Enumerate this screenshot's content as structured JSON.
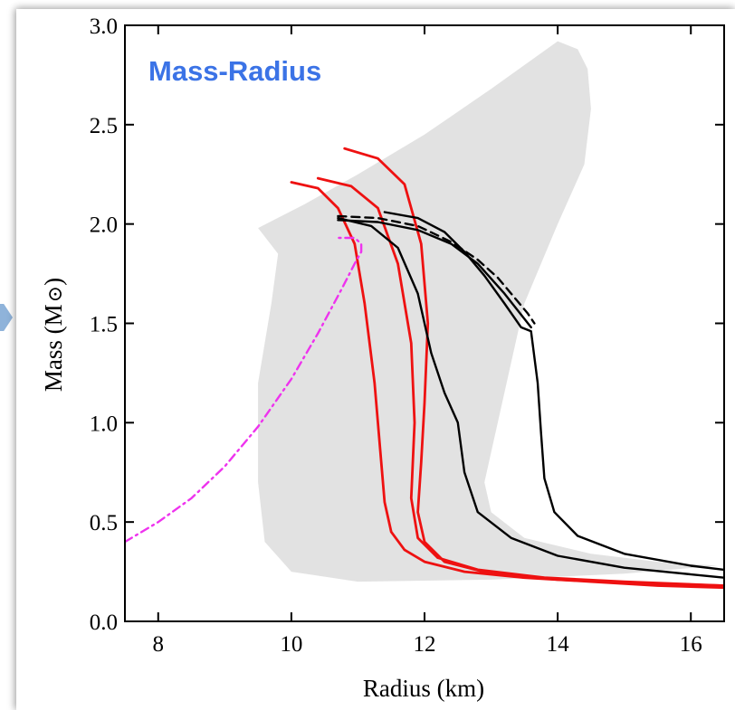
{
  "chart_data": {
    "type": "line",
    "title": "",
    "annotation": "Mass-Radius",
    "xlabel": "Radius (km)",
    "ylabel_main": "Mass (M",
    "ylabel_end": ")",
    "xlim": [
      7.5,
      16.5
    ],
    "ylim": [
      0.0,
      3.0
    ],
    "xticks": [
      8,
      10,
      12,
      14,
      16
    ],
    "yticks": [
      0.0,
      0.5,
      1.0,
      1.5,
      2.0,
      2.5,
      3.0
    ],
    "ytick_labels": [
      "0.0",
      "0.5",
      "1.0",
      "1.5",
      "2.0",
      "2.5",
      "3.0"
    ],
    "xtick_labels": [
      "8",
      "10",
      "12",
      "14",
      "16"
    ],
    "grid": false,
    "colors": {
      "red": "#ee1111",
      "black": "#000000",
      "magenta": "#ee33ee",
      "band": "#e2e2e2",
      "annotation": "#3b73e6"
    },
    "band": {
      "x": [
        9.5,
        10.2,
        11.0,
        12.0,
        13.0,
        14.0,
        14.3,
        14.45,
        14.5,
        14.4,
        14.0,
        13.5,
        13.1,
        12.9,
        13.0,
        13.5,
        14.5,
        15.5,
        16.4,
        15.0,
        13.0,
        11.0,
        10.0,
        9.6,
        9.5,
        9.5,
        9.7,
        9.8,
        9.5
      ],
      "y": [
        1.98,
        2.1,
        2.25,
        2.45,
        2.68,
        2.92,
        2.88,
        2.78,
        2.58,
        2.3,
        2.0,
        1.6,
        1.0,
        0.7,
        0.55,
        0.42,
        0.34,
        0.3,
        0.28,
        0.24,
        0.21,
        0.2,
        0.25,
        0.4,
        0.7,
        1.2,
        1.6,
        1.85,
        1.98
      ]
    },
    "series": [
      {
        "color": "red",
        "style": "solid",
        "x": [
          10.0,
          10.4,
          10.7,
          10.95,
          11.1,
          11.25,
          11.35,
          11.4,
          11.5,
          11.7,
          12.0,
          12.6,
          13.5,
          14.5,
          15.5,
          16.5
        ],
        "y": [
          2.21,
          2.18,
          2.08,
          1.9,
          1.6,
          1.2,
          0.8,
          0.6,
          0.45,
          0.36,
          0.3,
          0.25,
          0.22,
          0.2,
          0.18,
          0.17
        ]
      },
      {
        "color": "red",
        "style": "solid",
        "x": [
          10.4,
          10.9,
          11.3,
          11.6,
          11.8,
          11.85,
          11.8,
          11.9,
          12.2,
          12.8,
          13.8,
          15.0,
          16.5
        ],
        "y": [
          2.23,
          2.19,
          2.08,
          1.8,
          1.4,
          1.0,
          0.62,
          0.42,
          0.32,
          0.26,
          0.22,
          0.2,
          0.18
        ]
      },
      {
        "color": "red",
        "style": "solid",
        "x": [
          10.8,
          11.3,
          11.7,
          11.95,
          12.05,
          12.0,
          11.95,
          11.9,
          12.0,
          12.3,
          13.0,
          14.0,
          15.5,
          16.5
        ],
        "y": [
          2.38,
          2.33,
          2.2,
          1.9,
          1.5,
          1.1,
          0.8,
          0.55,
          0.4,
          0.3,
          0.24,
          0.21,
          0.19,
          0.18
        ]
      },
      {
        "color": "black",
        "style": "solid",
        "x": [
          10.7,
          11.2,
          11.6,
          11.9,
          12.1,
          12.3,
          12.5,
          12.6,
          12.8,
          13.3,
          14.0,
          15.0,
          16.5
        ],
        "y": [
          2.03,
          1.99,
          1.88,
          1.65,
          1.35,
          1.15,
          1.0,
          0.75,
          0.55,
          0.42,
          0.33,
          0.27,
          0.22
        ]
      },
      {
        "color": "black",
        "style": "solid",
        "x": [
          11.4,
          11.9,
          12.3,
          12.6,
          12.9,
          13.2,
          13.45,
          13.6,
          13.7,
          13.75,
          13.8,
          13.95,
          14.3,
          15.0,
          16.0,
          16.5
        ],
        "y": [
          2.06,
          2.03,
          1.96,
          1.86,
          1.74,
          1.6,
          1.48,
          1.46,
          1.2,
          0.95,
          0.72,
          0.55,
          0.43,
          0.34,
          0.28,
          0.26
        ]
      },
      {
        "color": "black",
        "style": "solid",
        "x": [
          10.7,
          11.3,
          11.9,
          12.4,
          12.8,
          13.2,
          13.6
        ],
        "y": [
          2.02,
          2.01,
          1.97,
          1.9,
          1.8,
          1.65,
          1.48
        ]
      },
      {
        "color": "black",
        "style": "dashed",
        "x": [
          10.7,
          11.3,
          11.9,
          12.4,
          12.8,
          13.1,
          13.35,
          13.55,
          13.65
        ],
        "y": [
          2.04,
          2.03,
          1.99,
          1.91,
          1.82,
          1.73,
          1.63,
          1.55,
          1.5
        ]
      },
      {
        "color": "magenta",
        "style": "dashdot",
        "x": [
          7.5,
          8.0,
          8.5,
          9.0,
          9.5,
          10.0,
          10.4,
          10.75,
          10.95,
          11.05,
          11.05,
          10.95,
          10.7
        ],
        "y": [
          0.4,
          0.5,
          0.62,
          0.78,
          0.98,
          1.22,
          1.45,
          1.67,
          1.8,
          1.86,
          1.9,
          1.93,
          1.93
        ]
      }
    ]
  }
}
